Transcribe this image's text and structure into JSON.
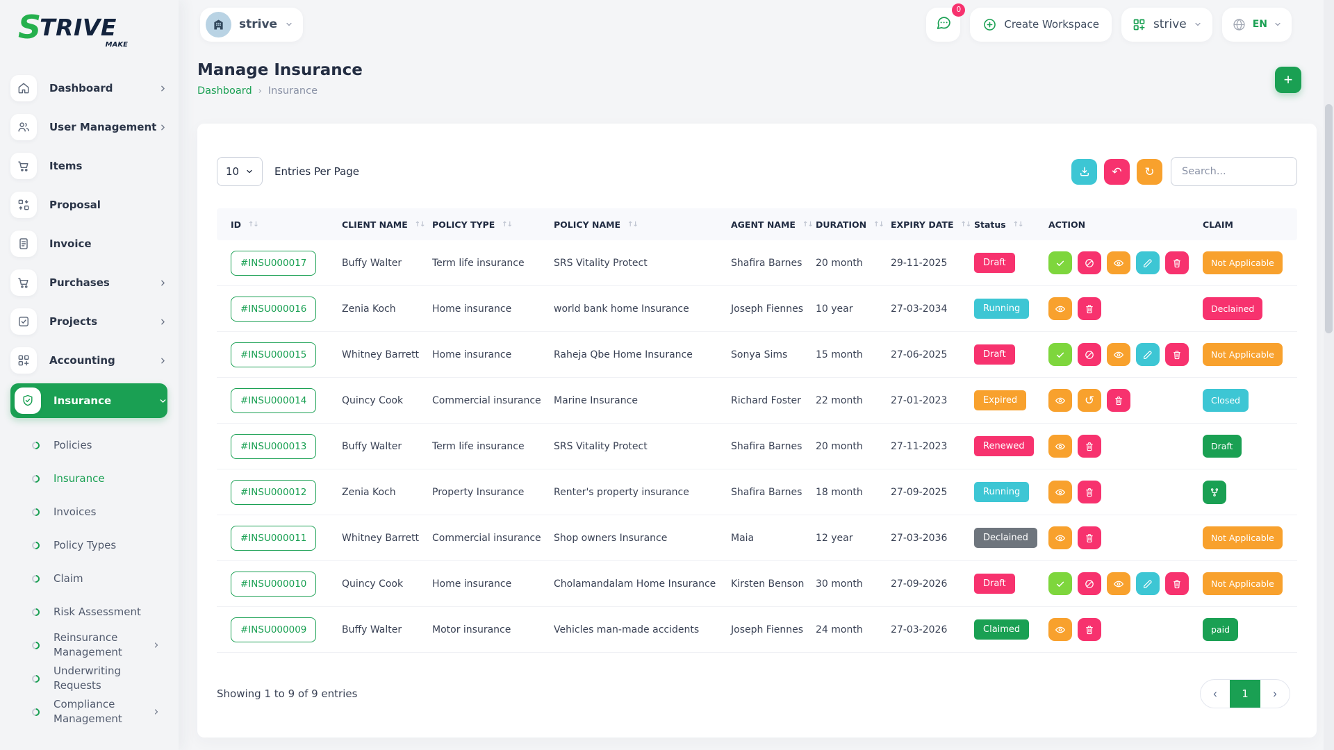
{
  "brand": {
    "name": "S",
    "name_rest": "TRIVE",
    "tagline": "MAKE"
  },
  "topbar": {
    "workspace": {
      "label": "strive",
      "icon": "building-icon"
    },
    "chat": {
      "badge": "0",
      "icon": "chat-icon"
    },
    "create_workspace": {
      "label": "Create Workspace",
      "icon": "plus-circle-icon"
    },
    "org": {
      "label": "strive",
      "icon": "grid-icon"
    },
    "language": {
      "label": "EN",
      "icon": "globe-icon"
    }
  },
  "sidebar": {
    "items": [
      {
        "label": "Dashboard",
        "icon": "home-icon",
        "chevron": "right"
      },
      {
        "label": "User Management",
        "icon": "users-icon",
        "chevron": "right"
      },
      {
        "label": "Items",
        "icon": "cart-icon",
        "chevron": ""
      },
      {
        "label": "Proposal",
        "icon": "proposal-icon",
        "chevron": ""
      },
      {
        "label": "Invoice",
        "icon": "invoice-icon",
        "chevron": ""
      },
      {
        "label": "Purchases",
        "icon": "cart-icon",
        "chevron": "right"
      },
      {
        "label": "Projects",
        "icon": "check-square-icon",
        "chevron": "right"
      },
      {
        "label": "Accounting",
        "icon": "accounting-icon",
        "chevron": "right"
      },
      {
        "label": "Insurance",
        "icon": "shield-icon",
        "chevron": "down",
        "active": true
      }
    ],
    "insurance_submenu": [
      {
        "label": "Policies"
      },
      {
        "label": "Insurance",
        "active": true
      },
      {
        "label": "Invoices"
      },
      {
        "label": "Policy Types"
      },
      {
        "label": "Claim"
      },
      {
        "label": "Risk Assessment"
      },
      {
        "label": "Reinsurance Management",
        "chevron": "right"
      },
      {
        "label": "Underwriting Requests"
      },
      {
        "label": "Compliance Management",
        "chevron": "right"
      }
    ]
  },
  "page": {
    "title": "Manage Insurance",
    "breadcrumb": [
      "Dashboard",
      "Insurance"
    ],
    "breadcrumb_sep": "›",
    "add_button": "+"
  },
  "controls": {
    "entries_value": "10",
    "entries_label": "Entries Per Page",
    "buttons": [
      {
        "name": "export",
        "icon": "download-icon",
        "color": "info"
      },
      {
        "name": "undo",
        "icon": "undo-icon",
        "color": "danger"
      },
      {
        "name": "refresh",
        "icon": "refresh-icon",
        "color": "warning"
      }
    ],
    "search_placeholder": "Search..."
  },
  "table": {
    "headers": [
      {
        "label": "ID",
        "sortable": true
      },
      {
        "label": "CLIENT NAME",
        "sortable": true
      },
      {
        "label": "POLICY TYPE",
        "sortable": true
      },
      {
        "label": "POLICY NAME",
        "sortable": true
      },
      {
        "label": "AGENT NAME",
        "sortable": true
      },
      {
        "label": "DURATION",
        "sortable": true
      },
      {
        "label": "EXPIRY DATE",
        "sortable": true
      },
      {
        "label": "Status",
        "sortable": true
      },
      {
        "label": "ACTION",
        "sortable": false
      },
      {
        "label": "CLAIM",
        "sortable": false
      }
    ],
    "rows": [
      {
        "id": "#INSU000017",
        "client": "Buffy Walter",
        "policy_type": "Term life insurance",
        "policy_name": "SRS Vitality Protect",
        "agent": "Shafira Barnes",
        "duration": "20 month",
        "expiry": "29-11-2025",
        "status": {
          "label": "Draft",
          "color": "danger"
        },
        "actions": [
          {
            "icon": "check-icon",
            "color": "lime"
          },
          {
            "icon": "ban-icon",
            "color": "danger"
          },
          {
            "icon": "eye-icon",
            "color": "warning"
          },
          {
            "icon": "pencil-icon",
            "color": "info"
          },
          {
            "icon": "trash-icon",
            "color": "danger"
          }
        ],
        "claim": {
          "label": "Not Applicable",
          "color": "warning"
        }
      },
      {
        "id": "#INSU000016",
        "client": "Zenia Koch",
        "policy_type": "Home insurance",
        "policy_name": "world bank home Insurance",
        "agent": "Joseph Fiennes",
        "duration": "10 year",
        "expiry": "27-03-2034",
        "status": {
          "label": "Running",
          "color": "info"
        },
        "actions": [
          {
            "icon": "eye-icon",
            "color": "warning"
          },
          {
            "icon": "trash-icon",
            "color": "danger"
          }
        ],
        "claim": {
          "label": "Declained",
          "color": "danger"
        }
      },
      {
        "id": "#INSU000015",
        "client": "Whitney Barrett",
        "policy_type": "Home insurance",
        "policy_name": "Raheja Qbe Home Insurance",
        "agent": "Sonya Sims",
        "duration": "15 month",
        "expiry": "27-06-2025",
        "status": {
          "label": "Draft",
          "color": "danger"
        },
        "actions": [
          {
            "icon": "check-icon",
            "color": "lime"
          },
          {
            "icon": "ban-icon",
            "color": "danger"
          },
          {
            "icon": "eye-icon",
            "color": "warning"
          },
          {
            "icon": "pencil-icon",
            "color": "info"
          },
          {
            "icon": "trash-icon",
            "color": "danger"
          }
        ],
        "claim": {
          "label": "Not Applicable",
          "color": "warning"
        }
      },
      {
        "id": "#INSU000014",
        "client": "Quincy Cook",
        "policy_type": "Commercial insurance",
        "policy_name": "Marine Insurance",
        "agent": "Richard Foster",
        "duration": "22 month",
        "expiry": "27-01-2023",
        "status": {
          "label": "Expired",
          "color": "warning"
        },
        "actions": [
          {
            "icon": "eye-icon",
            "color": "warning"
          },
          {
            "icon": "recycle-icon",
            "color": "warning"
          },
          {
            "icon": "trash-icon",
            "color": "danger"
          }
        ],
        "claim": {
          "label": "Closed",
          "color": "info"
        }
      },
      {
        "id": "#INSU000013",
        "client": "Buffy Walter",
        "policy_type": "Term life insurance",
        "policy_name": "SRS Vitality Protect",
        "agent": "Shafira Barnes",
        "duration": "20 month",
        "expiry": "27-11-2023",
        "status": {
          "label": "Renewed",
          "color": "danger"
        },
        "actions": [
          {
            "icon": "eye-icon",
            "color": "warning"
          },
          {
            "icon": "trash-icon",
            "color": "danger"
          }
        ],
        "claim": {
          "label": "Draft",
          "color": "primary"
        }
      },
      {
        "id": "#INSU000012",
        "client": "Zenia Koch",
        "policy_type": "Property Insurance",
        "policy_name": "Renter's property insurance",
        "agent": "Shafira Barnes",
        "duration": "18 month",
        "expiry": "27-09-2025",
        "status": {
          "label": "Running",
          "color": "info"
        },
        "actions": [
          {
            "icon": "eye-icon",
            "color": "warning"
          },
          {
            "icon": "trash-icon",
            "color": "danger"
          }
        ],
        "claim": {
          "icon": "git-branch-icon",
          "color": "primary"
        }
      },
      {
        "id": "#INSU000011",
        "client": "Whitney Barrett",
        "policy_type": "Commercial insurance",
        "policy_name": "Shop owners Insurance",
        "agent": "Maia",
        "duration": "12 year",
        "expiry": "27-03-2036",
        "status": {
          "label": "Declained",
          "color": "gray"
        },
        "actions": [
          {
            "icon": "eye-icon",
            "color": "warning"
          },
          {
            "icon": "trash-icon",
            "color": "danger"
          }
        ],
        "claim": {
          "label": "Not Applicable",
          "color": "warning"
        }
      },
      {
        "id": "#INSU000010",
        "client": "Quincy Cook",
        "policy_type": "Home insurance",
        "policy_name": "Cholamandalam Home Insurance",
        "agent": "Kirsten Benson",
        "duration": "30 month",
        "expiry": "27-09-2026",
        "status": {
          "label": "Draft",
          "color": "danger"
        },
        "actions": [
          {
            "icon": "check-icon",
            "color": "lime"
          },
          {
            "icon": "ban-icon",
            "color": "danger"
          },
          {
            "icon": "eye-icon",
            "color": "warning"
          },
          {
            "icon": "pencil-icon",
            "color": "info"
          },
          {
            "icon": "trash-icon",
            "color": "danger"
          }
        ],
        "claim": {
          "label": "Not Applicable",
          "color": "warning"
        }
      },
      {
        "id": "#INSU000009",
        "client": "Buffy Walter",
        "policy_type": "Motor insurance",
        "policy_name": "Vehicles man-made accidents",
        "agent": "Joseph Fiennes",
        "duration": "24 month",
        "expiry": "27-03-2026",
        "status": {
          "label": "Claimed",
          "color": "primary"
        },
        "actions": [
          {
            "icon": "eye-icon",
            "color": "warning"
          },
          {
            "icon": "trash-icon",
            "color": "danger"
          }
        ],
        "claim": {
          "label": "paid",
          "color": "primary"
        }
      }
    ]
  },
  "footer": {
    "showing": "Showing 1 to 9 of 9 entries",
    "page": "1",
    "prev": "‹",
    "next": "›"
  },
  "colors": {
    "primary": "#1aa053",
    "danger": "#f7326e",
    "warning": "#f8a12d",
    "info": "#3dc6d4",
    "lime": "#7ed63d",
    "gray": "#6e757d"
  }
}
